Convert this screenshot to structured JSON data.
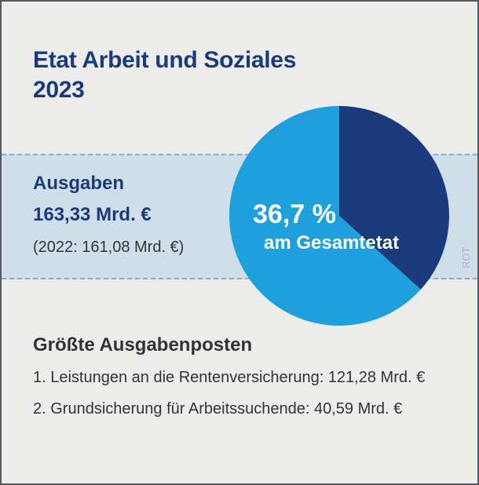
{
  "title": {
    "line1": "Etat Arbeit und Soziales",
    "line2": "2023"
  },
  "ausgaben": {
    "label": "Ausgaben",
    "value": "163,33 Mrd. €",
    "previous": "(2022: 161,08 Mrd. €)"
  },
  "chart_data": {
    "type": "pie",
    "slices": [
      {
        "label": "am Gesamtetat",
        "value": 36.7,
        "color": "#1a3a7c"
      },
      {
        "value": 63.3,
        "color": "#1ea0dc"
      }
    ],
    "center_label": "36,7 %",
    "center_sublabel": "am Gesamtetat"
  },
  "credit": "ROT",
  "posten": {
    "title": "Größte Ausgabenposten",
    "items": [
      "1. Leistungen an die Rentenversicherung: 121,28 Mrd. €",
      "2. Grundsicherung für Arbeitssuchende: 40,59 Mrd. €"
    ]
  },
  "colors": {
    "background": "#ececeb",
    "band": "#cfdfea",
    "title": "#1a3a7c",
    "text": "#333333"
  }
}
